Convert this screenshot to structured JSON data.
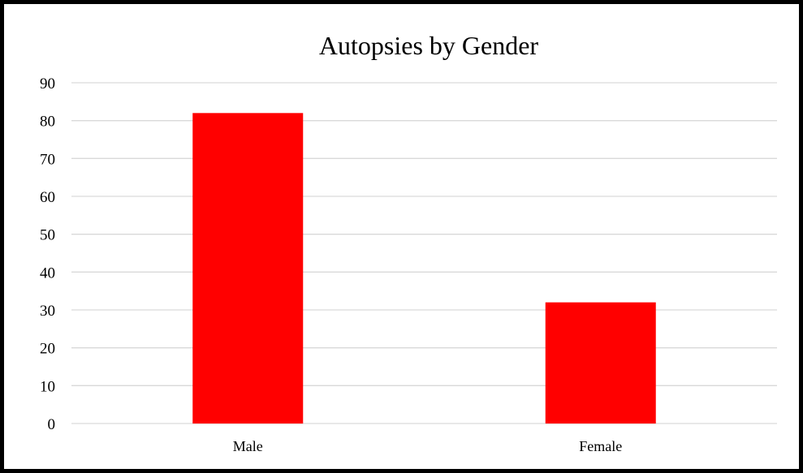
{
  "chart_data": {
    "type": "bar",
    "title": "Autopsies by Gender",
    "categories": [
      "Male",
      "Female"
    ],
    "values": [
      82,
      32
    ],
    "xlabel": "",
    "ylabel": "",
    "ylim": [
      0,
      90
    ],
    "y_ticks": [
      0,
      10,
      20,
      30,
      40,
      50,
      60,
      70,
      80,
      90
    ],
    "grid": true,
    "legend": "none",
    "bar_color": "#ff0000",
    "gridline_color": "#d9d9d9",
    "border_color": "#000000"
  }
}
